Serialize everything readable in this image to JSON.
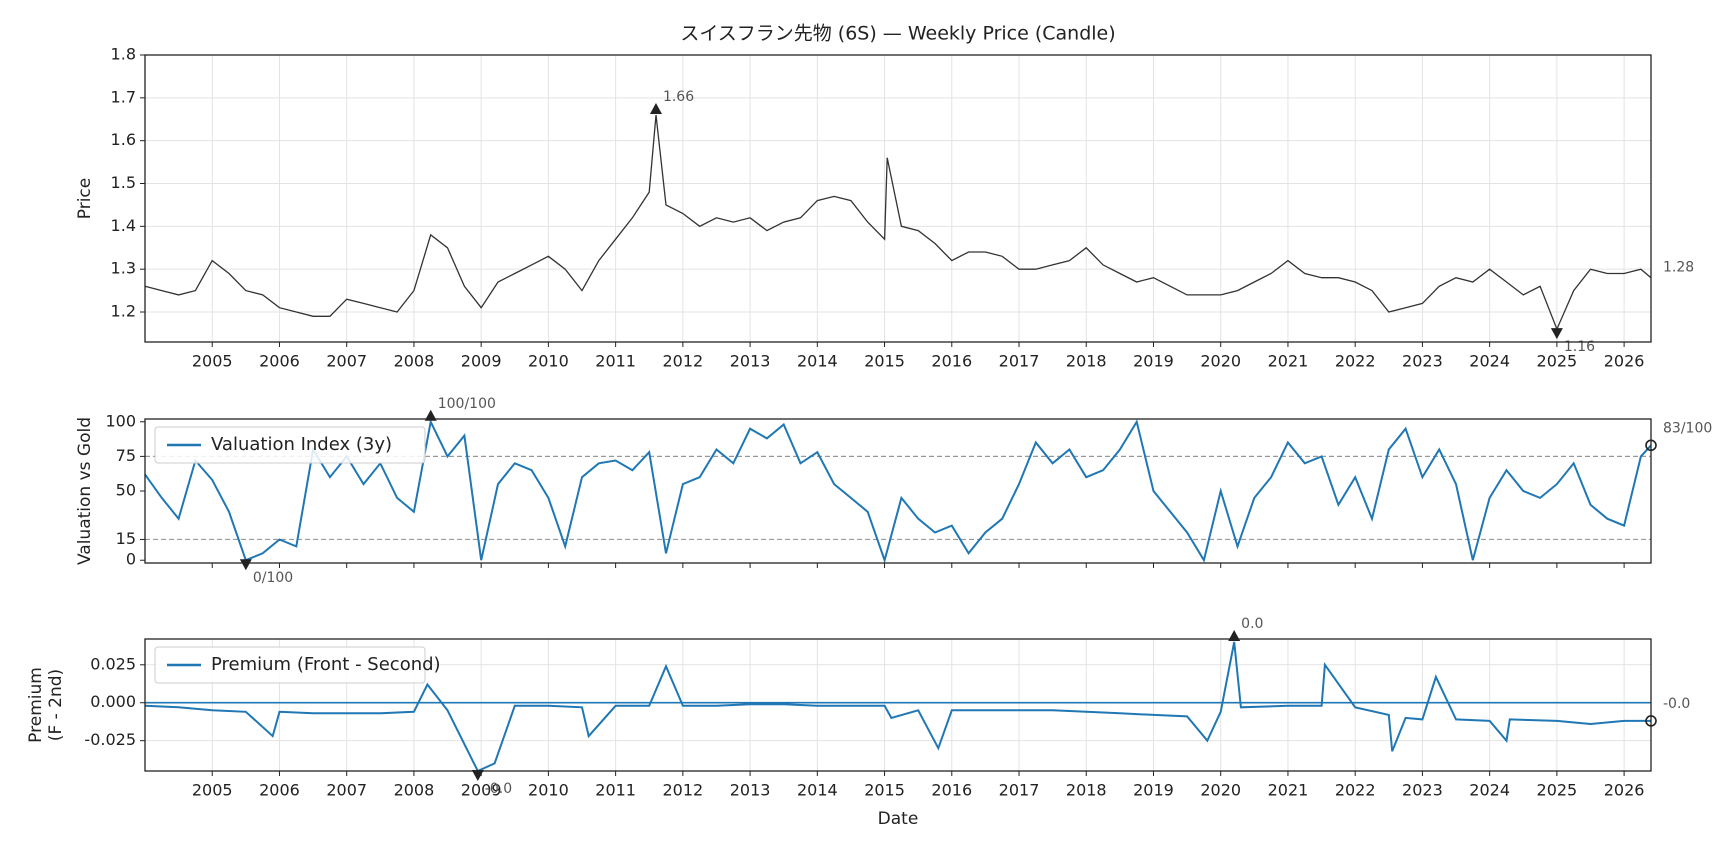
{
  "chart_data": [
    {
      "type": "line",
      "title": "スイスフラン先物 (6S) — Weekly Price (Candle)",
      "ylabel": "Price",
      "color": "#333333",
      "x": [
        2004.0,
        2004.25,
        2004.5,
        2004.75,
        2005.0,
        2005.25,
        2005.5,
        2005.75,
        2006.0,
        2006.25,
        2006.5,
        2006.75,
        2007.0,
        2007.25,
        2007.5,
        2007.75,
        2008.0,
        2008.25,
        2008.5,
        2008.75,
        2009.0,
        2009.25,
        2009.5,
        2009.75,
        2010.0,
        2010.25,
        2010.5,
        2010.75,
        2011.0,
        2011.25,
        2011.5,
        2011.6,
        2011.75,
        2012.0,
        2012.25,
        2012.5,
        2012.75,
        2013.0,
        2013.25,
        2013.5,
        2013.75,
        2014.0,
        2014.25,
        2014.5,
        2014.75,
        2015.0,
        2015.04,
        2015.25,
        2015.5,
        2015.75,
        2016.0,
        2016.25,
        2016.5,
        2016.75,
        2017.0,
        2017.25,
        2017.5,
        2017.75,
        2018.0,
        2018.25,
        2018.5,
        2018.75,
        2019.0,
        2019.25,
        2019.5,
        2019.75,
        2020.0,
        2020.25,
        2020.5,
        2020.75,
        2021.0,
        2021.25,
        2021.5,
        2021.75,
        2022.0,
        2022.25,
        2022.5,
        2022.75,
        2023.0,
        2023.25,
        2023.5,
        2023.75,
        2024.0,
        2024.25,
        2024.5,
        2024.75,
        2025.0,
        2025.25,
        2025.5,
        2025.75,
        2026.0,
        2026.25,
        2026.4
      ],
      "values": [
        1.26,
        1.25,
        1.24,
        1.25,
        1.32,
        1.29,
        1.25,
        1.24,
        1.21,
        1.2,
        1.19,
        1.19,
        1.23,
        1.22,
        1.21,
        1.2,
        1.25,
        1.38,
        1.35,
        1.26,
        1.21,
        1.27,
        1.29,
        1.31,
        1.33,
        1.3,
        1.25,
        1.32,
        1.37,
        1.42,
        1.48,
        1.66,
        1.45,
        1.43,
        1.4,
        1.42,
        1.41,
        1.42,
        1.39,
        1.41,
        1.42,
        1.46,
        1.47,
        1.46,
        1.41,
        1.37,
        1.56,
        1.4,
        1.39,
        1.36,
        1.32,
        1.34,
        1.34,
        1.33,
        1.3,
        1.3,
        1.31,
        1.32,
        1.35,
        1.31,
        1.29,
        1.27,
        1.28,
        1.26,
        1.24,
        1.24,
        1.24,
        1.25,
        1.27,
        1.29,
        1.32,
        1.29,
        1.28,
        1.28,
        1.27,
        1.25,
        1.2,
        1.21,
        1.22,
        1.26,
        1.28,
        1.27,
        1.3,
        1.27,
        1.24,
        1.26,
        1.16,
        1.25,
        1.3,
        1.29,
        1.29,
        1.3,
        1.28
      ],
      "xlim": [
        2004.0,
        2026.4
      ],
      "xticks": [
        2005,
        2006,
        2007,
        2008,
        2009,
        2010,
        2011,
        2012,
        2013,
        2014,
        2015,
        2016,
        2017,
        2018,
        2019,
        2020,
        2021,
        2022,
        2023,
        2024,
        2025,
        2026
      ],
      "ylim": [
        1.13,
        1.8
      ],
      "yticks": [
        1.2,
        1.3,
        1.4,
        1.5,
        1.6,
        1.7,
        1.8
      ],
      "grid": true,
      "xticklabels": true,
      "annotations": [
        {
          "x": 2011.6,
          "value": 1.66,
          "marker": "^"
        },
        {
          "x": 2025.0,
          "value": 1.16,
          "marker": "v"
        },
        {
          "x": 2026.4,
          "value": 1.28,
          "marker": "none"
        }
      ]
    },
    {
      "type": "line",
      "ylabel": "Valuation vs Gold",
      "legend": "upper left",
      "x": [
        2004.0,
        2004.25,
        2004.5,
        2004.75,
        2005.0,
        2005.25,
        2005.5,
        2005.75,
        2006.0,
        2006.25,
        2006.5,
        2006.75,
        2007.0,
        2007.25,
        2007.5,
        2007.75,
        2008.0,
        2008.25,
        2008.5,
        2008.75,
        2009.0,
        2009.25,
        2009.5,
        2009.75,
        2010.0,
        2010.25,
        2010.5,
        2010.75,
        2011.0,
        2011.25,
        2011.5,
        2011.75,
        2012.0,
        2012.25,
        2012.5,
        2012.75,
        2013.0,
        2013.25,
        2013.5,
        2013.75,
        2014.0,
        2014.25,
        2014.5,
        2014.75,
        2015.0,
        2015.25,
        2015.5,
        2015.75,
        2016.0,
        2016.25,
        2016.5,
        2016.75,
        2017.0,
        2017.25,
        2017.5,
        2017.75,
        2018.0,
        2018.25,
        2018.5,
        2018.75,
        2019.0,
        2019.25,
        2019.5,
        2019.75,
        2020.0,
        2020.25,
        2020.5,
        2020.75,
        2021.0,
        2021.25,
        2021.5,
        2021.75,
        2022.0,
        2022.25,
        2022.5,
        2022.75,
        2023.0,
        2023.25,
        2023.5,
        2023.75,
        2024.0,
        2024.25,
        2024.5,
        2024.75,
        2025.0,
        2025.25,
        2025.5,
        2025.75,
        2026.0,
        2026.25,
        2026.4
      ],
      "series": [
        {
          "name": "Valuation Index (3y)",
          "color": "#1f77b4",
          "values": [
            62,
            45,
            30,
            72,
            58,
            35,
            0,
            5,
            15,
            10,
            80,
            60,
            75,
            55,
            70,
            45,
            35,
            100,
            75,
            90,
            0,
            55,
            70,
            65,
            45,
            10,
            60,
            70,
            72,
            65,
            78,
            5,
            55,
            60,
            80,
            70,
            95,
            88,
            98,
            70,
            78,
            55,
            45,
            35,
            0,
            45,
            30,
            20,
            25,
            5,
            20,
            30,
            55,
            85,
            70,
            80,
            60,
            65,
            80,
            100,
            50,
            35,
            20,
            0,
            50,
            10,
            45,
            60,
            85,
            70,
            75,
            40,
            60,
            30,
            80,
            95,
            60,
            80,
            55,
            0,
            45,
            65,
            50,
            45,
            55,
            70,
            40,
            30,
            25,
            75,
            83
          ]
        }
      ],
      "xlim": [
        2004.0,
        2026.4
      ],
      "xticks": [
        2005,
        2006,
        2007,
        2008,
        2009,
        2010,
        2011,
        2012,
        2013,
        2014,
        2015,
        2016,
        2017,
        2018,
        2019,
        2020,
        2021,
        2022,
        2023,
        2024,
        2025,
        2026
      ],
      "ylim": [
        -2,
        102
      ],
      "yticks": [
        0,
        15,
        50,
        75,
        100
      ],
      "grid": false,
      "xticklabels": false,
      "hlines": [
        {
          "value": 75,
          "style": "dashed",
          "color": "#999999"
        },
        {
          "value": 15,
          "style": "dashed",
          "color": "#999999"
        }
      ],
      "annotations": [
        {
          "x": 2008.25,
          "value": 100,
          "label": "100/100",
          "marker": "^"
        },
        {
          "x": 2005.5,
          "value": 0,
          "label": "0/100",
          "marker": "v"
        },
        {
          "x": 2026.4,
          "value": 83,
          "label": "83/100",
          "marker": "o"
        }
      ]
    },
    {
      "type": "line",
      "ylabel": [
        "Premium",
        "(F - 2nd)"
      ],
      "xlabel": "Date",
      "legend": "upper left",
      "x": [
        2004.0,
        2004.5,
        2005.0,
        2005.5,
        2005.9,
        2006.0,
        2006.5,
        2007.0,
        2007.5,
        2008.0,
        2008.2,
        2008.5,
        2008.95,
        2009.2,
        2009.5,
        2010.0,
        2010.5,
        2010.6,
        2011.0,
        2011.5,
        2011.75,
        2012.0,
        2012.5,
        2013.0,
        2013.5,
        2014.0,
        2014.5,
        2015.0,
        2015.1,
        2015.5,
        2015.8,
        2016.0,
        2016.5,
        2017.0,
        2017.5,
        2018.0,
        2018.5,
        2019.0,
        2019.5,
        2019.8,
        2020.0,
        2020.2,
        2020.3,
        2021.0,
        2021.5,
        2021.55,
        2022.0,
        2022.5,
        2022.55,
        2022.75,
        2023.0,
        2023.2,
        2023.5,
        2024.0,
        2024.25,
        2024.3,
        2025.0,
        2025.5,
        2026.0,
        2026.4
      ],
      "series": [
        {
          "name": "Premium (Front - Second)",
          "color": "#1f77b4",
          "values": [
            -0.002,
            -0.003,
            -0.005,
            -0.006,
            -0.022,
            -0.006,
            -0.007,
            -0.007,
            -0.007,
            -0.006,
            0.012,
            -0.005,
            -0.045,
            -0.04,
            -0.002,
            -0.002,
            -0.003,
            -0.022,
            -0.002,
            -0.002,
            0.024,
            -0.002,
            -0.002,
            -0.001,
            -0.001,
            -0.002,
            -0.002,
            -0.002,
            -0.01,
            -0.005,
            -0.03,
            -0.005,
            -0.005,
            -0.005,
            -0.005,
            -0.006,
            -0.007,
            -0.008,
            -0.009,
            -0.025,
            -0.006,
            0.04,
            -0.003,
            -0.002,
            -0.002,
            0.025,
            -0.003,
            -0.008,
            -0.032,
            -0.01,
            -0.011,
            0.017,
            -0.011,
            -0.012,
            -0.025,
            -0.011,
            -0.012,
            -0.014,
            -0.012,
            -0.012
          ]
        }
      ],
      "xlim": [
        2004.0,
        2026.4
      ],
      "xticks": [
        2005,
        2006,
        2007,
        2008,
        2009,
        2010,
        2011,
        2012,
        2013,
        2014,
        2015,
        2016,
        2017,
        2018,
        2019,
        2020,
        2021,
        2022,
        2023,
        2024,
        2025,
        2026
      ],
      "ylim": [
        -0.045,
        0.042
      ],
      "yticks": [
        0.025,
        {
          "value": 0,
          "label": "0.000"
        },
        -0.025
      ],
      "grid": true,
      "xticklabels": true,
      "hlines": [
        {
          "value": 0,
          "style": "solid",
          "color": "#1f77b4"
        }
      ],
      "annotations": [
        {
          "x": 2020.2,
          "value": 0.04,
          "label": "0.0",
          "marker": "^"
        },
        {
          "x": 2008.95,
          "value": -0.045,
          "label": "-0.0",
          "marker": "v"
        },
        {
          "x": 2026.4,
          "value": -0.012,
          "label": "-0.0",
          "marker": "o"
        }
      ]
    }
  ]
}
